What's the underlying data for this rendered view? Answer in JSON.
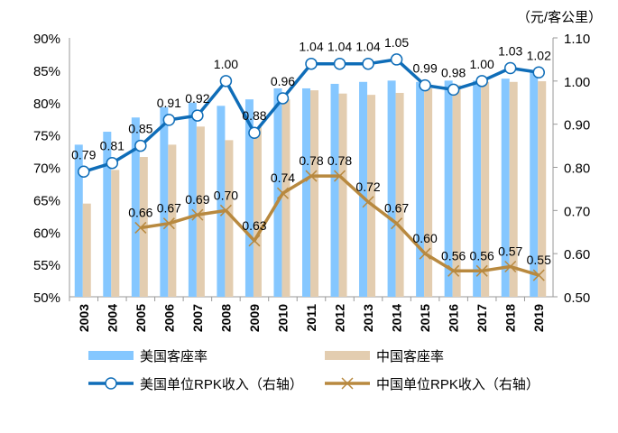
{
  "chart_data": {
    "type": "bar+line",
    "categories": [
      "2003",
      "2004",
      "2005",
      "2006",
      "2007",
      "2008",
      "2009",
      "2010",
      "2011",
      "2012",
      "2013",
      "2014",
      "2015",
      "2016",
      "2017",
      "2018",
      "2019"
    ],
    "right_axis_unit": "（元/客公里）",
    "left_axis": {
      "ylim": [
        0.5,
        0.9
      ],
      "ticks": [
        "50%",
        "55%",
        "60%",
        "65%",
        "70%",
        "75%",
        "80%",
        "85%",
        "90%"
      ]
    },
    "right_axis": {
      "ylim": [
        0.5,
        1.1
      ],
      "ticks": [
        "0.50",
        "0.60",
        "0.70",
        "0.80",
        "0.90",
        "1.00",
        "1.10"
      ]
    },
    "series": [
      {
        "name": "美国客座率",
        "type": "bar",
        "axis": "left",
        "color": "#85C7FF",
        "values": [
          73.5,
          75.5,
          77.7,
          79.3,
          80.0,
          79.5,
          80.5,
          82.2,
          82.2,
          82.9,
          83.2,
          83.4,
          83.2,
          83.4,
          83.4,
          83.7,
          85.0
        ]
      },
      {
        "name": "中国客座率",
        "type": "bar",
        "axis": "left",
        "color": "#E3CDB0",
        "values": [
          64.4,
          69.6,
          71.6,
          73.5,
          76.3,
          74.2,
          76.2,
          80.5,
          81.9,
          81.4,
          81.2,
          81.5,
          82.2,
          82.7,
          83.2,
          83.2,
          83.3
        ]
      },
      {
        "name": "美国单位RPK收入（右轴）",
        "type": "line",
        "axis": "right",
        "color": "#0F6DB8",
        "marker": "circle",
        "values": [
          0.79,
          0.81,
          0.85,
          0.91,
          0.92,
          1.0,
          0.88,
          0.96,
          1.04,
          1.04,
          1.04,
          1.05,
          0.99,
          0.98,
          1.0,
          1.03,
          1.02
        ],
        "labels": [
          "0.79",
          "0.81",
          "0.85",
          "0.91",
          "0.92",
          "1.00",
          "0.88",
          "0.96",
          "1.04",
          "1.04",
          "1.04",
          "1.05",
          "0.99",
          "0.98",
          "1.00",
          "1.03",
          "1.02"
        ]
      },
      {
        "name": "中国单位RPK收入（右轴）",
        "type": "line",
        "axis": "right",
        "color": "#B8893F",
        "marker": "x",
        "values": [
          null,
          null,
          0.66,
          0.67,
          0.69,
          0.7,
          0.63,
          0.74,
          0.78,
          0.78,
          0.72,
          0.67,
          0.6,
          0.56,
          0.56,
          0.57,
          0.55
        ],
        "labels": [
          null,
          null,
          "0.66",
          "0.67",
          "0.69",
          "0.70",
          "0.63",
          "0.74",
          "0.78",
          "0.78",
          "0.72",
          "0.67",
          "0.60",
          "0.56",
          "0.56",
          "0.57",
          "0.55"
        ]
      }
    ],
    "legend": "bottom"
  }
}
